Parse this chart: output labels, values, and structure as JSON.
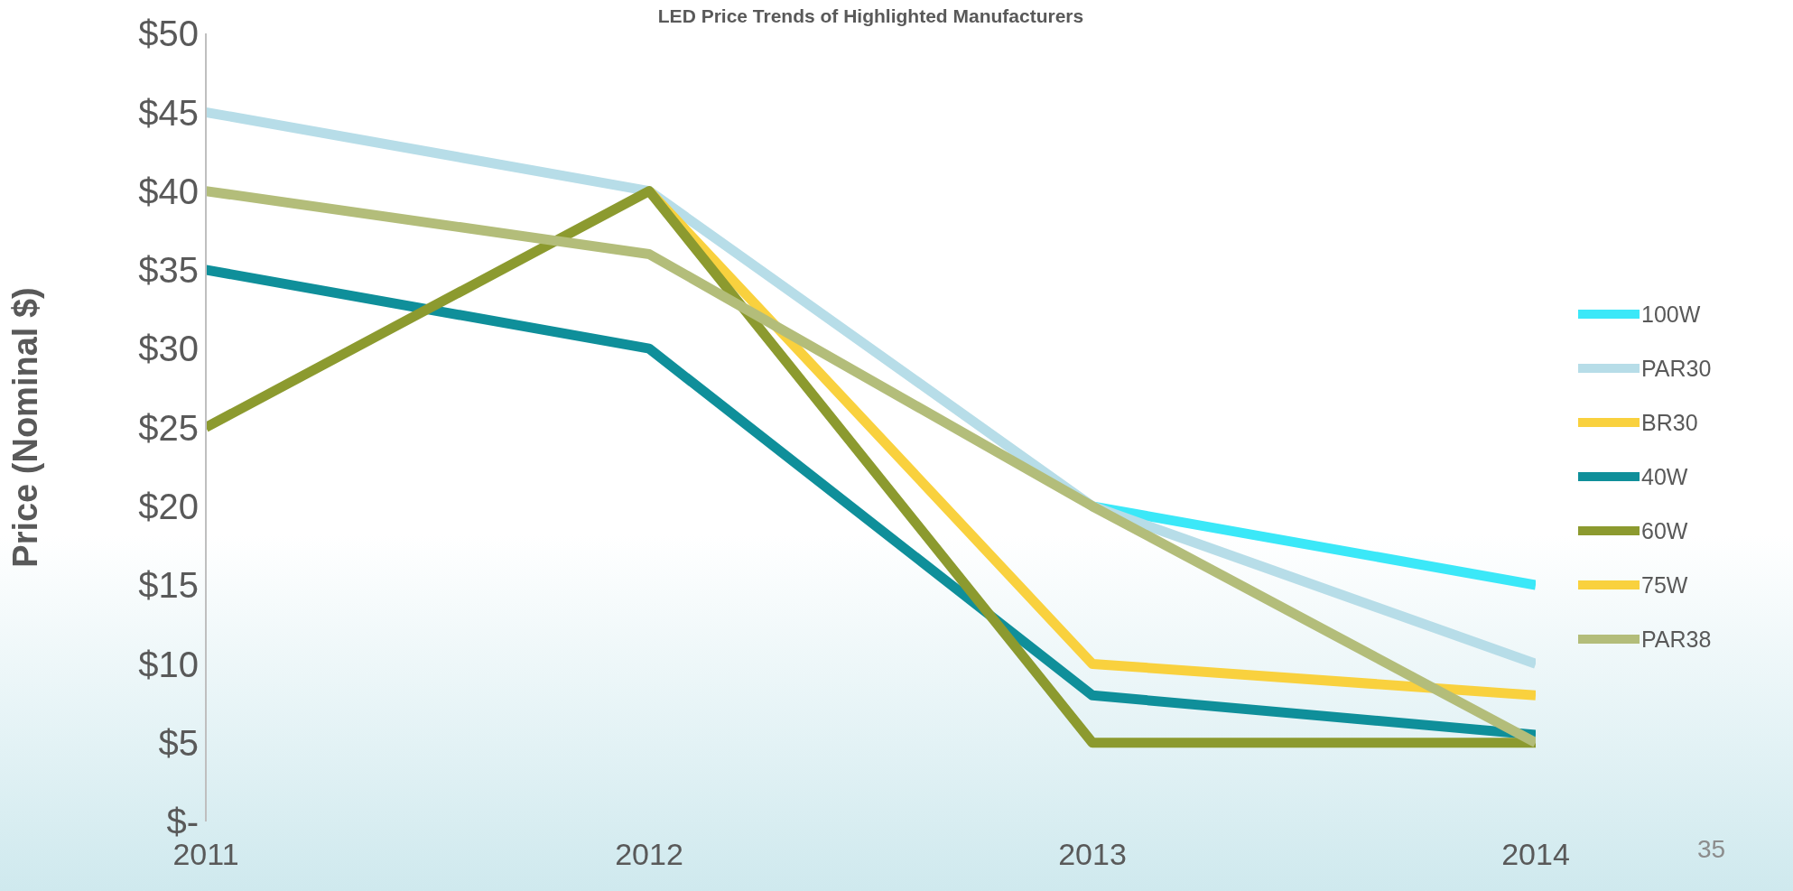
{
  "chart_data": {
    "type": "line",
    "title": "LED Price Trends of Highlighted Manufacturers",
    "ylabel": "Price (Nominal $)",
    "x": [
      2011,
      2012,
      2013,
      2014
    ],
    "xlim": [
      2011,
      2014
    ],
    "xticks": [
      2011,
      2012,
      2013,
      2014
    ],
    "ylim": [
      0,
      50
    ],
    "yticks": [
      {
        "value": 0,
        "label": "$-"
      },
      {
        "value": 5,
        "label": "$5"
      },
      {
        "value": 10,
        "label": "$10"
      },
      {
        "value": 15,
        "label": "$15"
      },
      {
        "value": 20,
        "label": "$20"
      },
      {
        "value": 25,
        "label": "$25"
      },
      {
        "value": 30,
        "label": "$30"
      },
      {
        "value": 35,
        "label": "$35"
      },
      {
        "value": 40,
        "label": "$40"
      },
      {
        "value": 45,
        "label": "$45"
      },
      {
        "value": 50,
        "label": "$50"
      }
    ],
    "grid": false,
    "legend": "right",
    "marker": "none",
    "line_style": "solid",
    "annotations": [
      "35"
    ],
    "series": [
      {
        "name": "100W",
        "color": "#3be8f8",
        "values": [
          null,
          null,
          20,
          15
        ]
      },
      {
        "name": "PAR30",
        "color": "#b7dde8",
        "values": [
          45,
          40,
          20,
          10
        ]
      },
      {
        "name": "BR30",
        "color": "#f9d13e",
        "values": [
          null,
          40,
          10,
          8
        ]
      },
      {
        "name": "40W",
        "color": "#0f8f9a",
        "values": [
          35,
          30,
          8,
          5.5
        ]
      },
      {
        "name": "60W",
        "color": "#8c9a2f",
        "values": [
          25,
          40,
          5,
          5
        ]
      },
      {
        "name": "75W",
        "color": "#f9d13e",
        "values": [
          null,
          null,
          null,
          null
        ]
      },
      {
        "name": "PAR38",
        "color": "#b3bd7a",
        "values": [
          40,
          36,
          20,
          5
        ]
      }
    ]
  }
}
